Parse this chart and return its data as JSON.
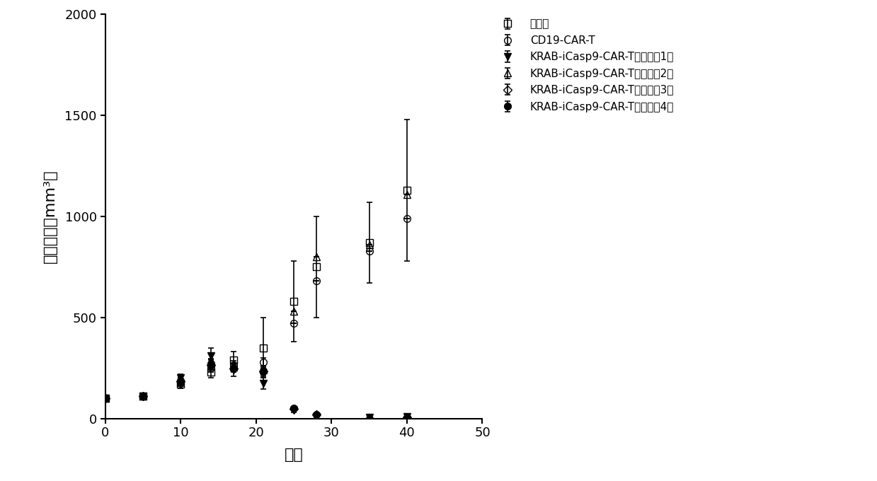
{
  "series": [
    {
      "label": "对照组",
      "marker": "s",
      "markersize": 7,
      "x": [
        0,
        5,
        10,
        14,
        17,
        21,
        25,
        28,
        35,
        40
      ],
      "y": [
        100,
        110,
        170,
        230,
        290,
        350,
        580,
        750,
        870,
        1130
      ],
      "yerr": [
        0,
        0,
        20,
        30,
        40,
        150,
        200,
        250,
        200,
        350
      ],
      "color": "#000000",
      "fillstyle": "none",
      "linewidth": 1.5
    },
    {
      "label": "CD19-CAR-T",
      "marker": "o",
      "markersize": 7,
      "x": [
        0,
        5,
        10,
        14,
        17,
        21,
        25,
        28,
        35,
        40
      ],
      "y": [
        100,
        110,
        175,
        250,
        265,
        280,
        470,
        680,
        830,
        990
      ],
      "yerr": [
        0,
        0,
        15,
        20,
        20,
        20,
        0,
        0,
        0,
        0
      ],
      "color": "#000000",
      "fillstyle": "none",
      "linewidth": 1.5
    },
    {
      "label": "KRAB-iCasp9-CAR-T细胞文库1组",
      "marker": "v",
      "markersize": 7,
      "x": [
        0,
        5,
        10,
        14,
        17,
        21,
        25,
        28,
        35,
        40
      ],
      "y": [
        100,
        110,
        200,
        310,
        240,
        175,
        40,
        10,
        5,
        10
      ],
      "yerr": [
        0,
        0,
        20,
        40,
        30,
        30,
        10,
        5,
        5,
        5
      ],
      "color": "#000000",
      "fillstyle": "full",
      "linewidth": 1.5
    },
    {
      "label": "KRAB-iCasp9-CAR-T细胞文库2组",
      "marker": "^",
      "markersize": 7,
      "x": [
        0,
        5,
        10,
        14,
        17,
        21,
        25,
        28,
        35,
        40
      ],
      "y": [
        100,
        110,
        185,
        270,
        255,
        240,
        530,
        800,
        860,
        1110
      ],
      "yerr": [
        0,
        0,
        15,
        25,
        20,
        20,
        0,
        0,
        0,
        0
      ],
      "color": "#000000",
      "fillstyle": "none",
      "linewidth": 1.5
    },
    {
      "label": "KRAB-iCasp9-CAR-T细胞文库3组",
      "marker": "D",
      "markersize": 6,
      "x": [
        0,
        5,
        10,
        14,
        17,
        21,
        25,
        28,
        35,
        40
      ],
      "y": [
        100,
        110,
        185,
        265,
        248,
        232,
        48,
        18,
        0,
        5
      ],
      "yerr": [
        0,
        0,
        15,
        25,
        20,
        20,
        5,
        5,
        0,
        5
      ],
      "color": "#000000",
      "fillstyle": "none",
      "linewidth": 1.5
    },
    {
      "label": "KRAB-iCasp9-CAR-T细胞文库4组",
      "marker": "o",
      "markersize": 7,
      "x": [
        0,
        5,
        10,
        14,
        17,
        21,
        25,
        28,
        35,
        40
      ],
      "y": [
        100,
        110,
        188,
        272,
        252,
        238,
        52,
        18,
        0,
        5
      ],
      "yerr": [
        0,
        0,
        15,
        20,
        20,
        20,
        5,
        5,
        0,
        5
      ],
      "color": "#000000",
      "fillstyle": "full",
      "linewidth": 1.5
    }
  ],
  "xlabel": "天数",
  "ylabel": "肿瘾体积（mm³）",
  "xlim": [
    0,
    50
  ],
  "ylim": [
    0,
    2000
  ],
  "xticks": [
    0,
    10,
    20,
    30,
    40,
    50
  ],
  "yticks": [
    0,
    500,
    1000,
    1500,
    2000
  ],
  "background_color": "#ffffff"
}
